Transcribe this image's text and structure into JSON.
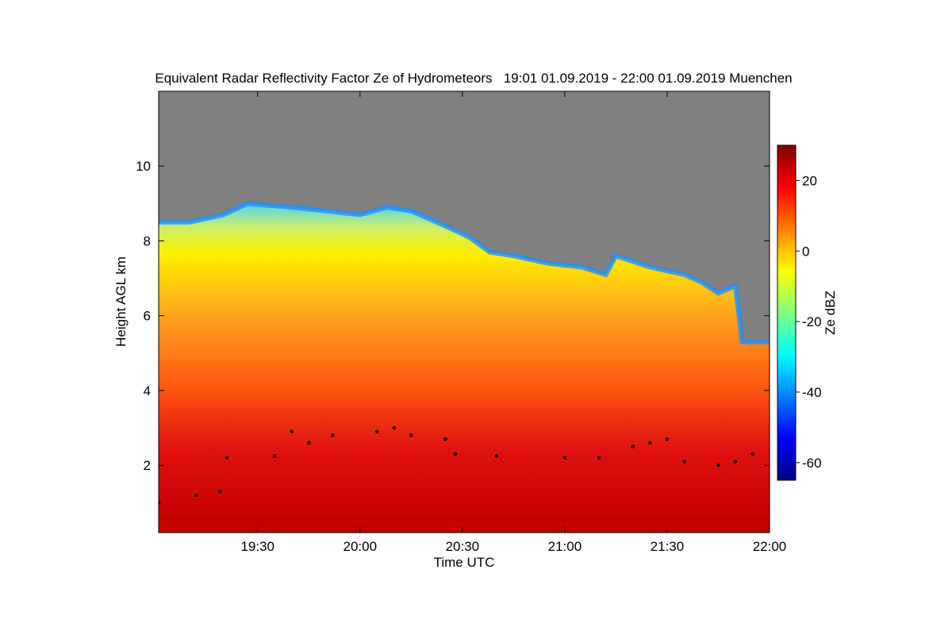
{
  "chart_data": {
    "type": "heatmap",
    "title": "Equivalent Radar Reflectivity Factor Ze of Hydrometeors   19:01 01.09.2019 - 22:00 01.09.2019 Muenchen",
    "xlabel": "Time UTC",
    "ylabel": "Height AGL km",
    "x_range": [
      "19:01",
      "22:00"
    ],
    "x_ticks": [
      "19:30",
      "20:00",
      "20:30",
      "21:00",
      "21:30",
      "22:00"
    ],
    "y_range": [
      0.2,
      12
    ],
    "y_ticks": [
      2,
      4,
      6,
      8,
      10
    ],
    "colorbar": {
      "label": "Ze dBZ",
      "range": [
        -65,
        30
      ],
      "ticks": [
        -60,
        -40,
        -20,
        0,
        20
      ]
    },
    "colors": {
      "no_signal": "#808080",
      "cloud_base_marker": "#000000"
    },
    "echo_top_km": [
      {
        "t": "19:01",
        "h": 8.5
      },
      {
        "t": "19:10",
        "h": 8.5
      },
      {
        "t": "19:20",
        "h": 8.7
      },
      {
        "t": "19:27",
        "h": 9.0
      },
      {
        "t": "19:40",
        "h": 8.9
      },
      {
        "t": "19:50",
        "h": 8.8
      },
      {
        "t": "20:00",
        "h": 8.7
      },
      {
        "t": "20:08",
        "h": 8.9
      },
      {
        "t": "20:15",
        "h": 8.8
      },
      {
        "t": "20:25",
        "h": 8.4
      },
      {
        "t": "20:32",
        "h": 8.1
      },
      {
        "t": "20:38",
        "h": 7.7
      },
      {
        "t": "20:45",
        "h": 7.6
      },
      {
        "t": "20:55",
        "h": 7.4
      },
      {
        "t": "21:05",
        "h": 7.3
      },
      {
        "t": "21:12",
        "h": 7.1
      },
      {
        "t": "21:15",
        "h": 7.6
      },
      {
        "t": "21:25",
        "h": 7.3
      },
      {
        "t": "21:35",
        "h": 7.1
      },
      {
        "t": "21:40",
        "h": 6.9
      },
      {
        "t": "21:45",
        "h": 6.6
      },
      {
        "t": "21:50",
        "h": 6.8
      },
      {
        "t": "21:52",
        "h": 5.3
      },
      {
        "t": "22:00",
        "h": 5.3
      }
    ],
    "cloud_base_km": [
      {
        "t": "19:01",
        "h": 1.0
      },
      {
        "t": "19:12",
        "h": 1.2
      },
      {
        "t": "19:19",
        "h": 1.3
      },
      {
        "t": "19:21",
        "h": 2.2
      },
      {
        "t": "19:35",
        "h": 2.25
      },
      {
        "t": "19:40",
        "h": 2.9
      },
      {
        "t": "19:45",
        "h": 2.6
      },
      {
        "t": "19:52",
        "h": 2.8
      },
      {
        "t": "20:05",
        "h": 2.9
      },
      {
        "t": "20:10",
        "h": 3.0
      },
      {
        "t": "20:15",
        "h": 2.8
      },
      {
        "t": "20:25",
        "h": 2.7
      },
      {
        "t": "20:28",
        "h": 2.3
      },
      {
        "t": "20:40",
        "h": 2.25
      },
      {
        "t": "21:00",
        "h": 2.2
      },
      {
        "t": "21:10",
        "h": 2.2
      },
      {
        "t": "21:20",
        "h": 2.5
      },
      {
        "t": "21:25",
        "h": 2.6
      },
      {
        "t": "21:30",
        "h": 2.7
      },
      {
        "t": "21:35",
        "h": 2.1
      },
      {
        "t": "21:45",
        "h": 2.0
      },
      {
        "t": "21:50",
        "h": 2.1
      },
      {
        "t": "21:55",
        "h": 2.3
      }
    ]
  }
}
